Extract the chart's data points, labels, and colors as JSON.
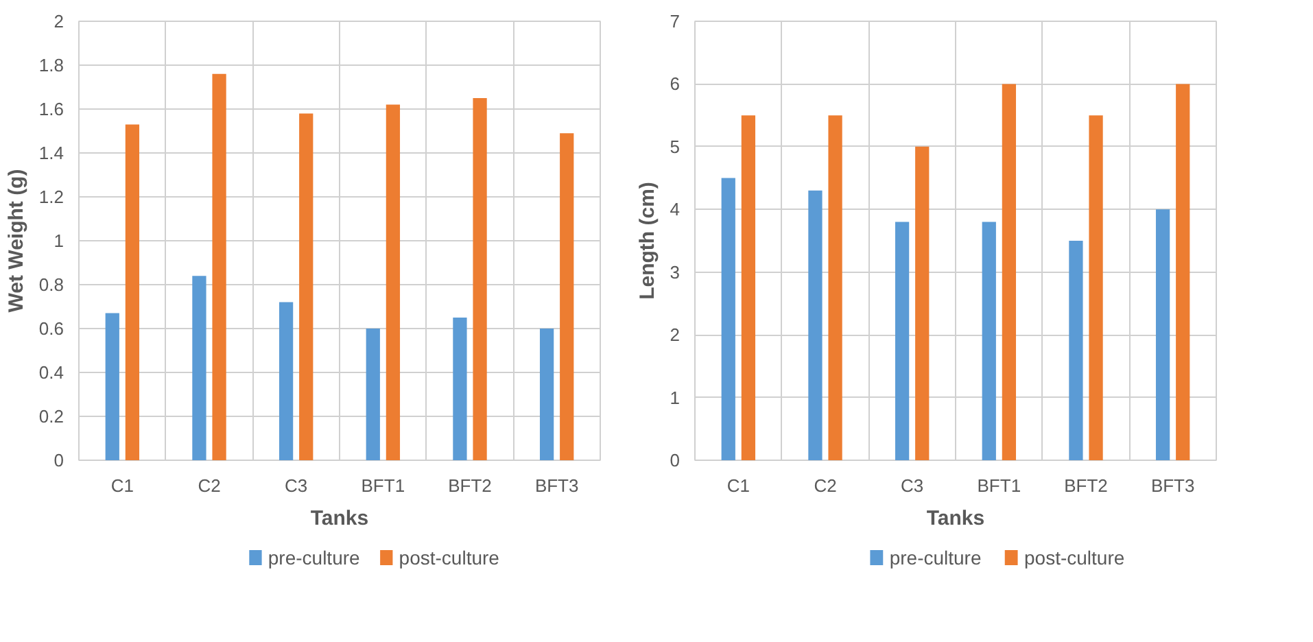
{
  "chart_data": [
    {
      "type": "bar",
      "xlabel": "Tanks",
      "ylabel": "Wet Weight (g)",
      "categories": [
        "C1",
        "C2",
        "C3",
        "BFT1",
        "BFT2",
        "BFT3"
      ],
      "series": [
        {
          "name": "pre-culture",
          "color": "#5b9bd5",
          "values": [
            0.67,
            0.84,
            0.72,
            0.6,
            0.65,
            0.6
          ]
        },
        {
          "name": "post-culture",
          "color": "#ed7d31",
          "values": [
            1.53,
            1.76,
            1.58,
            1.62,
            1.65,
            1.49
          ]
        }
      ],
      "ylim": [
        0,
        2
      ],
      "yticks": [
        0,
        0.2,
        0.4,
        0.6,
        0.8,
        1,
        1.2,
        1.4,
        1.6,
        1.8,
        2
      ],
      "grid": true,
      "legend": "bottom"
    },
    {
      "type": "bar",
      "xlabel": "Tanks",
      "ylabel": "Length (cm)",
      "categories": [
        "C1",
        "C2",
        "C3",
        "BFT1",
        "BFT2",
        "BFT3"
      ],
      "series": [
        {
          "name": "pre-culture",
          "color": "#5b9bd5",
          "values": [
            4.5,
            4.3,
            3.8,
            3.8,
            3.5,
            4.0
          ]
        },
        {
          "name": "post-culture",
          "color": "#ed7d31",
          "values": [
            5.5,
            5.5,
            5.0,
            6.0,
            5.5,
            6.0
          ]
        }
      ],
      "ylim": [
        0,
        7
      ],
      "yticks": [
        0,
        1,
        2,
        3,
        4,
        5,
        6,
        7
      ],
      "grid": true,
      "legend": "bottom"
    }
  ]
}
